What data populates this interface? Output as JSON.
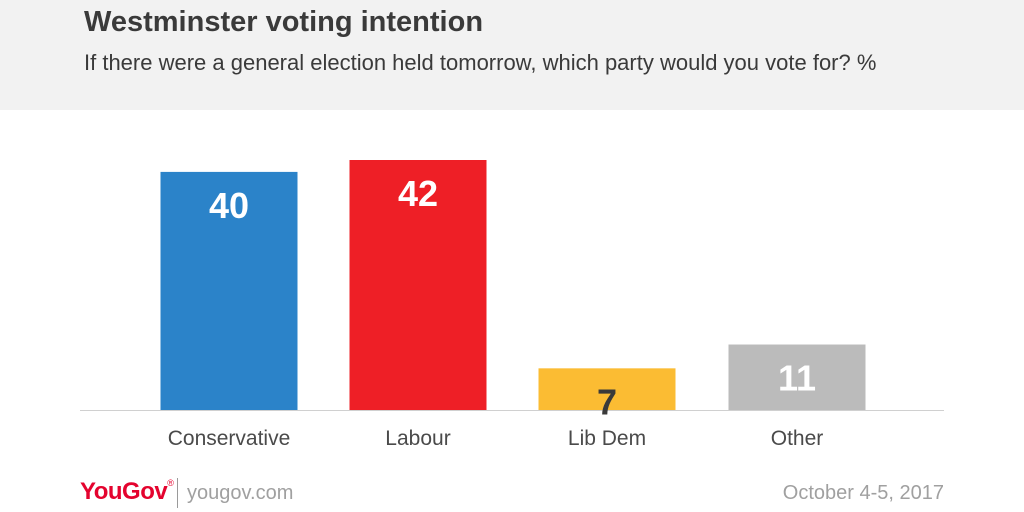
{
  "header": {
    "title": "Westminster voting intention",
    "subtitle": "If there were a general election held tomorrow, which party would you vote for? %"
  },
  "chart_data": {
    "type": "bar",
    "title": "Westminster voting intention",
    "subtitle": "If there were a general election held tomorrow, which party would you vote for? %",
    "categories": [
      "Conservative",
      "Labour",
      "Lib Dem",
      "Other"
    ],
    "values": [
      40,
      42,
      7,
      11
    ],
    "colors": [
      "#2b83c9",
      "#ee1f26",
      "#fbbc33",
      "#bbbbbb"
    ],
    "value_label_colors": [
      "#ffffff",
      "#ffffff",
      "#3a3a3a",
      "#ffffff"
    ],
    "ylim": [
      0,
      42
    ],
    "grid": false,
    "legend": "none"
  },
  "footer": {
    "brand": "YouGov",
    "url": "yougov.com",
    "date": "October 4-5, 2017"
  }
}
